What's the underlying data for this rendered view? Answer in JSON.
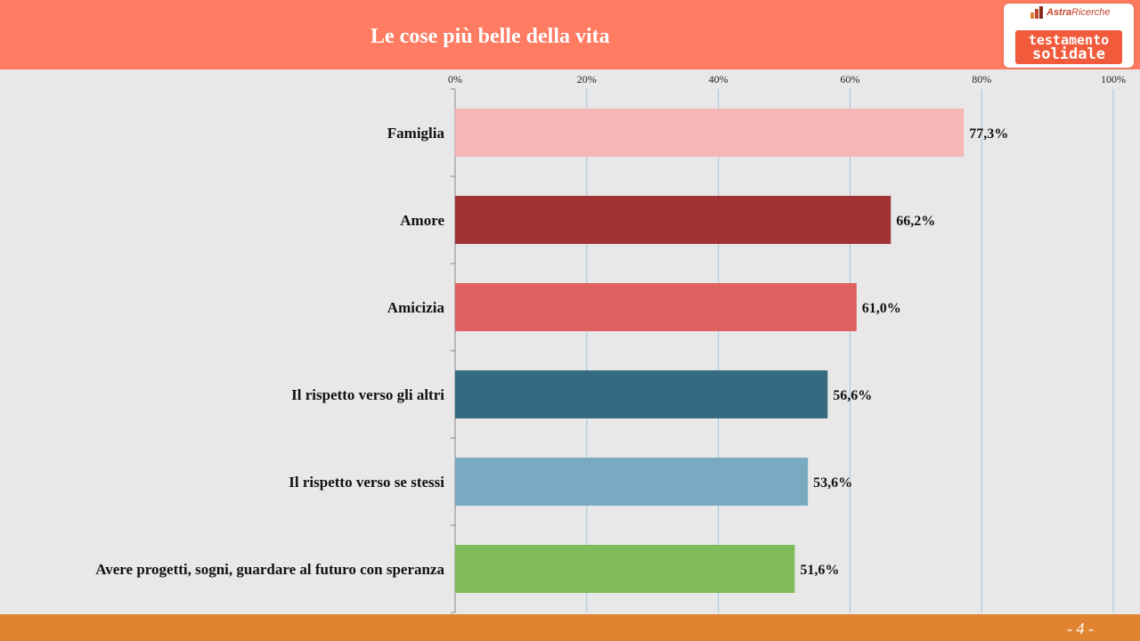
{
  "header": {
    "title": "Le cose più belle della vita",
    "logo": {
      "top_brand": "Astra",
      "top_sub": "Ricerche",
      "line1": "testamento",
      "line2": "solidale"
    }
  },
  "footer": {
    "page": "- 4 -"
  },
  "colors": {
    "header_bg": "#ff7b61",
    "footer_bg": "#e08432",
    "plot_bg": "#e8e8e8",
    "gridline": "#9ec3dc"
  },
  "chart_data": {
    "type": "bar",
    "orientation": "horizontal",
    "categories": [
      "Famiglia",
      "Amore",
      "Amicizia",
      "Il rispetto verso gli altri",
      "Il rispetto verso se stessi",
      "Avere progetti, sogni, guardare al futuro con speranza"
    ],
    "values": [
      77.3,
      66.2,
      61.0,
      56.6,
      53.6,
      51.6
    ],
    "value_labels": [
      "77,3%",
      "66,2%",
      "61,0%",
      "56,6%",
      "53,6%",
      "51,6%"
    ],
    "bar_colors": [
      "#f7b6b6",
      "#a33235",
      "#e06060",
      "#356a80",
      "#78aac2",
      "#80bc5a"
    ],
    "xlim": [
      0,
      100
    ],
    "xticks": [
      "0%",
      "20%",
      "40%",
      "60%",
      "80%",
      "100%"
    ],
    "xtick_values": [
      0,
      20,
      40,
      60,
      80,
      100
    ],
    "axis_position": "top",
    "grid": true
  }
}
